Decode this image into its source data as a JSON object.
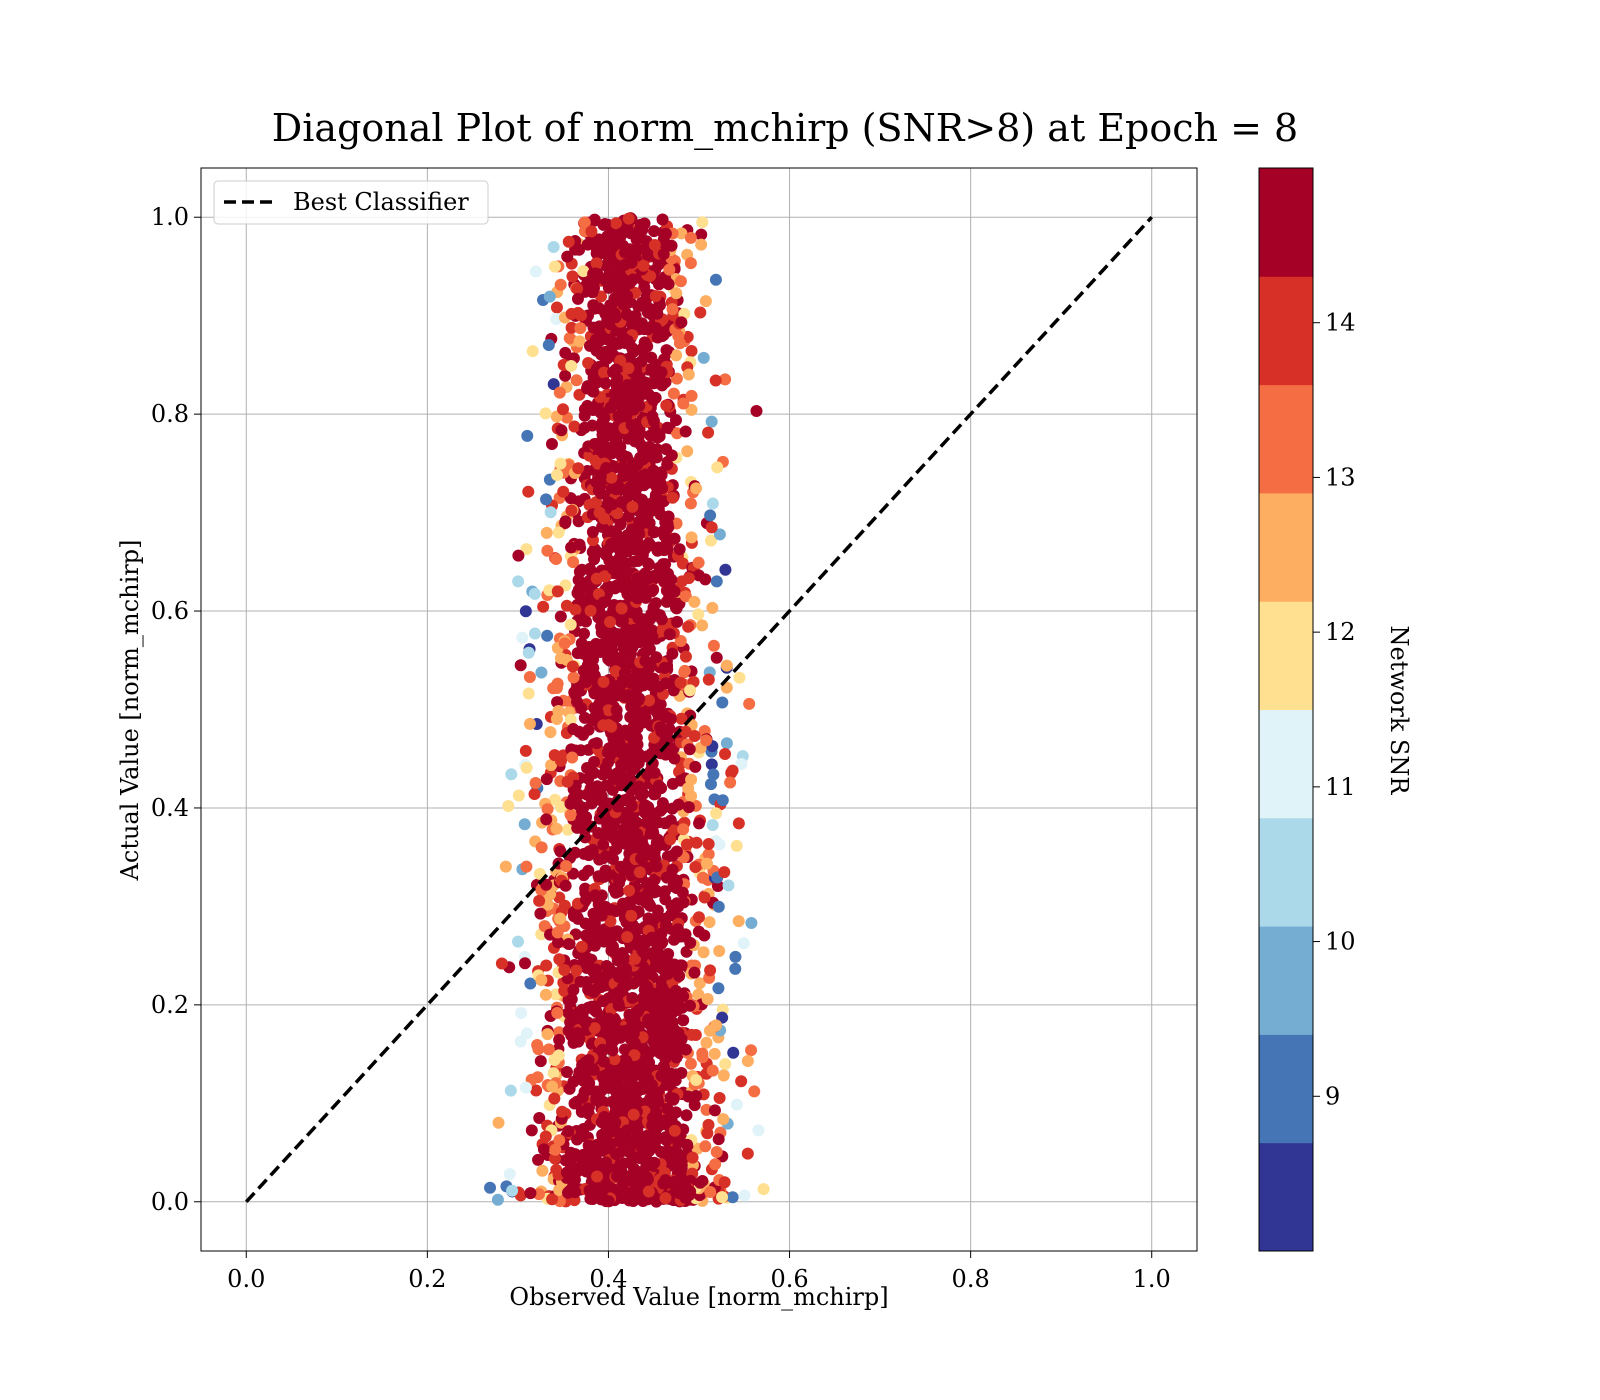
{
  "chart_data": {
    "type": "scatter",
    "title": "Diagonal Plot of norm_mchirp (SNR>8) at Epoch = 8",
    "xlabel": "Observed Value [norm_mchirp]",
    "ylabel": "Actual Value [norm_mchirp]",
    "xlim": [
      -0.05,
      1.05
    ],
    "ylim": [
      -0.05,
      1.05
    ],
    "xticks": [
      "0.0",
      "0.2",
      "0.4",
      "0.6",
      "0.8",
      "1.0"
    ],
    "yticks": [
      "0.0",
      "0.2",
      "0.4",
      "0.6",
      "0.8",
      "1.0"
    ],
    "grid": true,
    "legend": {
      "placement": "top-left",
      "entries": [
        "Best Classifier"
      ]
    },
    "reference_line": {
      "name": "Best Classifier",
      "x": [
        0.0,
        1.0
      ],
      "y": [
        0.0,
        1.0
      ],
      "style": "dashed",
      "color": "#000000"
    },
    "scatter_description": {
      "x_center_approx": 0.42,
      "x_spread_bottom": [
        0.27,
        0.55
      ],
      "x_spread_top": [
        0.33,
        0.54
      ],
      "y_range": [
        0.0,
        1.0
      ],
      "note_marker_color_encodes": "Network SNR"
    },
    "colorbar": {
      "label": "Network SNR",
      "range": [
        8,
        15
      ],
      "ticks": [
        "9",
        "10",
        "11",
        "12",
        "13",
        "14"
      ],
      "colors": [
        "#313695",
        "#4575b4",
        "#74add1",
        "#abd9e9",
        "#e0f3f8",
        "#ffffbf",
        "#fee090",
        "#fdae61",
        "#f46d43",
        "#d73027",
        "#a50026"
      ],
      "bins": 10
    }
  }
}
